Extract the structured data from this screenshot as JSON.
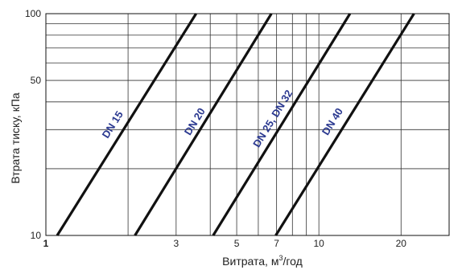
{
  "chart_data": {
    "type": "line",
    "title": "",
    "xlabel": "Витрата, м³/год",
    "xlabel_main": "Витрата, м",
    "xlabel_sup": "3",
    "xlabel_unit": "/год",
    "ylabel": "Втрата тиску, кПа",
    "x_scale": "log",
    "y_scale": "log",
    "xlim": [
      1,
      30
    ],
    "ylim": [
      10,
      100
    ],
    "grid": true,
    "x_grid": [
      2,
      3,
      4,
      5,
      6,
      7,
      8,
      9,
      10,
      20
    ],
    "y_grid": [
      20,
      30,
      40,
      50,
      60,
      70,
      80,
      90
    ],
    "x_ticks": [
      {
        "value": 1,
        "label": "1"
      },
      {
        "value": 3,
        "label": "3"
      },
      {
        "value": 5,
        "label": "5"
      },
      {
        "value": 7,
        "label": "7"
      },
      {
        "value": 10,
        "label": "10"
      },
      {
        "value": 20,
        "label": "20"
      }
    ],
    "y_ticks": [
      {
        "value": 10,
        "label": "10"
      },
      {
        "value": 50,
        "label": "50"
      },
      {
        "value": 100,
        "label": "100"
      }
    ],
    "line_color": "#111111",
    "label_color": "#2b3990",
    "series": [
      {
        "name": "DN 15",
        "x": [
          1.1,
          3.55
        ],
        "y": [
          10,
          100
        ],
        "label_at": [
          1.8,
          31
        ]
      },
      {
        "name": "DN 20",
        "x": [
          2.12,
          6.7
        ],
        "y": [
          10,
          100
        ],
        "label_at": [
          3.6,
          32
        ]
      },
      {
        "name": "DN 25, DN 32",
        "x": [
          4.1,
          13.0
        ],
        "y": [
          10,
          100
        ],
        "label_at": [
          6.95,
          33
        ]
      },
      {
        "name": "DN 40",
        "x": [
          6.95,
          22.3
        ],
        "y": [
          10,
          100
        ],
        "label_at": [
          11.5,
          32
        ]
      }
    ]
  }
}
